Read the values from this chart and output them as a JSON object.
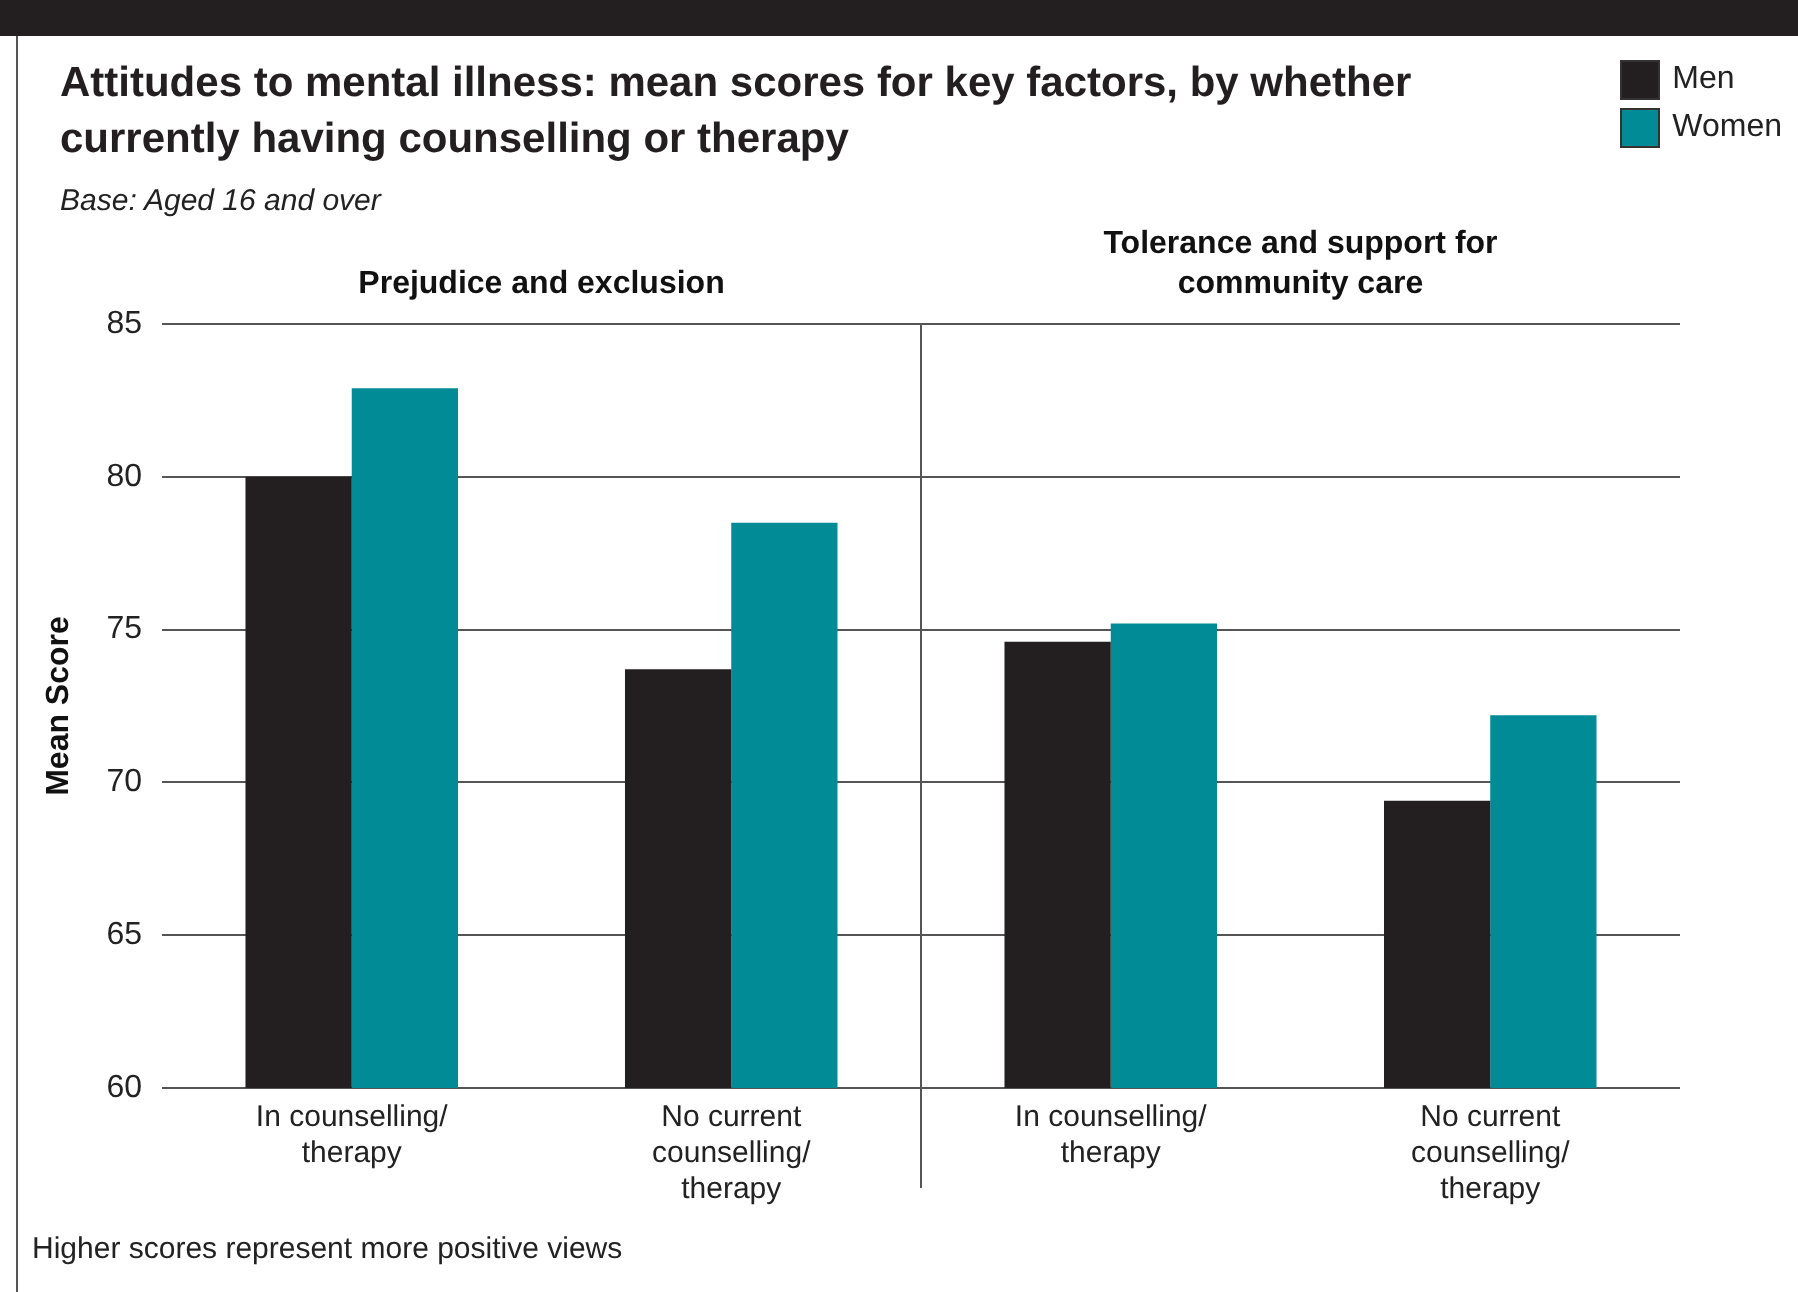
{
  "chart_data": {
    "type": "bar",
    "title": "Attitudes to mental illness: mean scores for key factors, by whether currently having counselling or therapy",
    "subtitle": "Base: Aged 16 and over",
    "ylabel": "Mean Score",
    "categories": [
      "In counselling/ therapy",
      "No current counselling/ therapy",
      "In counselling/ therapy",
      "No current counselling/ therapy"
    ],
    "series": [
      {
        "name": "Men",
        "color": "#231f20",
        "values": [
          80,
          73.7,
          74.6,
          69.4
        ]
      },
      {
        "name": "Women",
        "color": "#008b96",
        "values": [
          82.9,
          78.5,
          75.2,
          72.2
        ]
      }
    ],
    "ylim": [
      60,
      85
    ],
    "yticks": [
      60,
      65,
      70,
      75,
      80,
      85
    ],
    "grid": "y",
    "legend": "top right",
    "annotations": [
      "Prejudice and exclusion",
      "Tolerance and support for community care",
      "Higher scores represent more positive views"
    ]
  }
}
